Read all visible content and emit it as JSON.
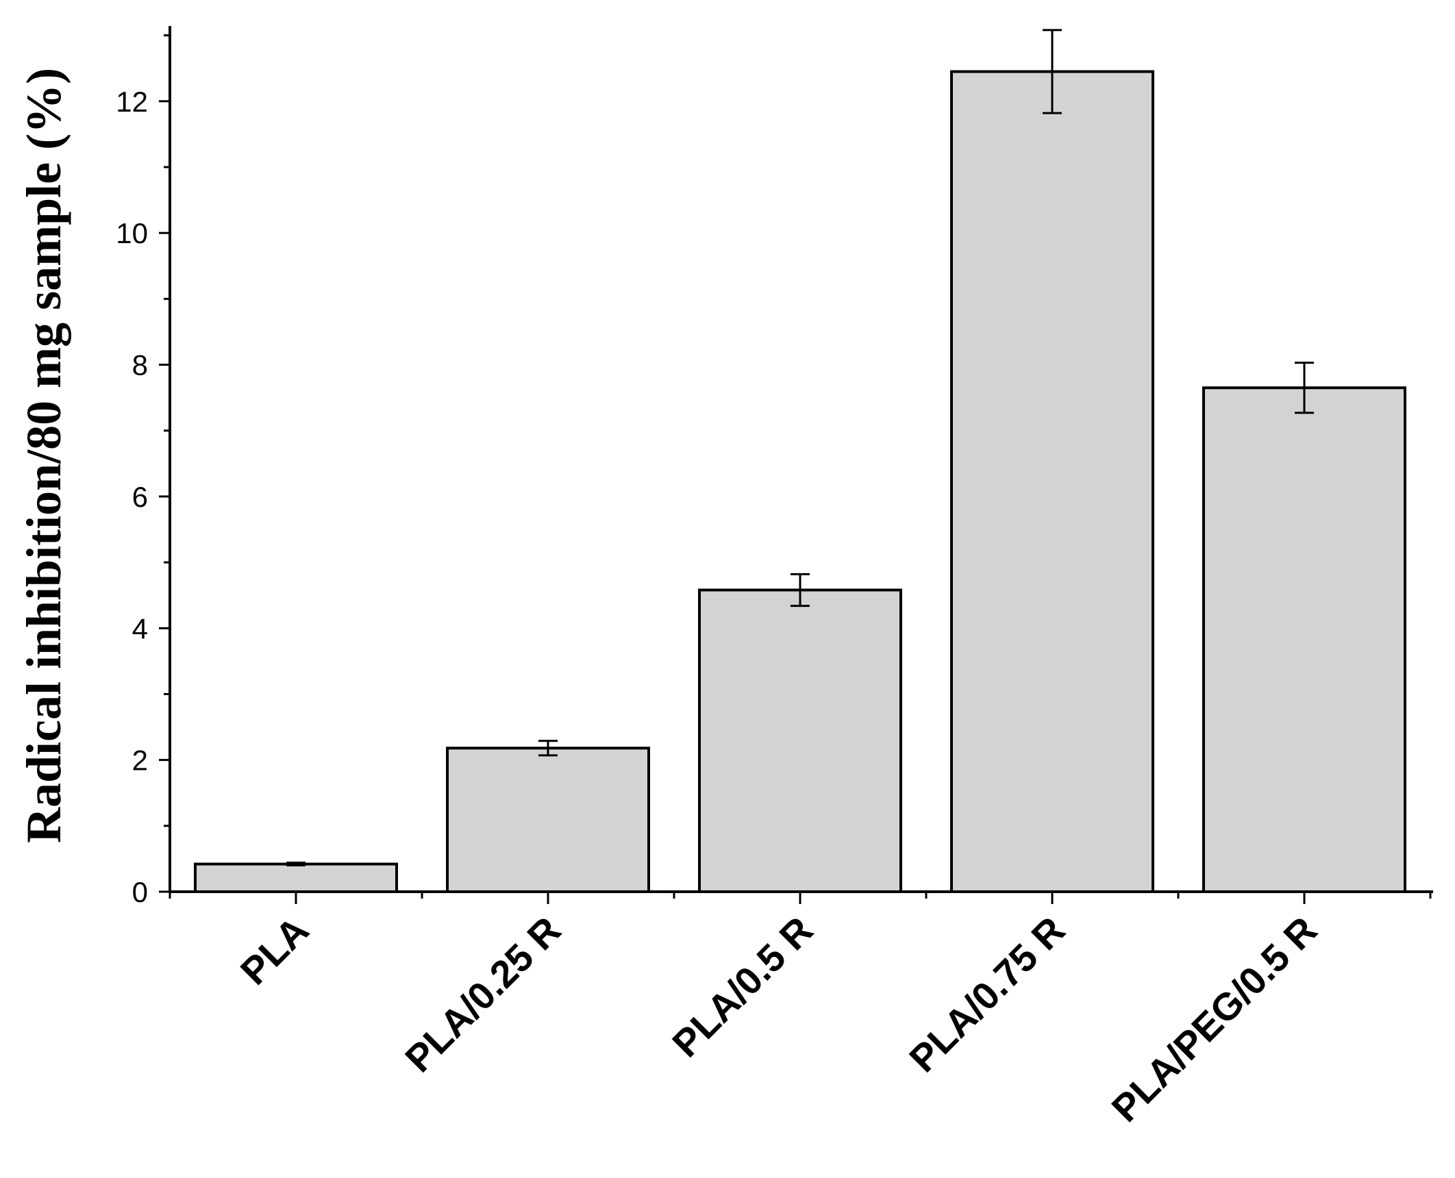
{
  "chart_data": {
    "type": "bar",
    "title": "",
    "xlabel": "",
    "ylabel": "Radical inhibition/80 mg sample (%)",
    "categories": [
      "PLA",
      "PLA/0.25 R",
      "PLA/0.5 R",
      "PLA/0.75 R",
      "PLA/PEG/0.5 R"
    ],
    "values": [
      0.42,
      2.18,
      4.58,
      12.45,
      7.65
    ],
    "errors": [
      0.02,
      0.11,
      0.24,
      0.63,
      0.38
    ],
    "ylim": [
      0,
      13.1
    ],
    "yticks": [
      0,
      2,
      4,
      6,
      8,
      10,
      12
    ],
    "grid": false,
    "legend": "none",
    "colors": {
      "bar_fill": "#d3d3d3",
      "bar_stroke": "#000000",
      "axis": "#000000"
    }
  }
}
